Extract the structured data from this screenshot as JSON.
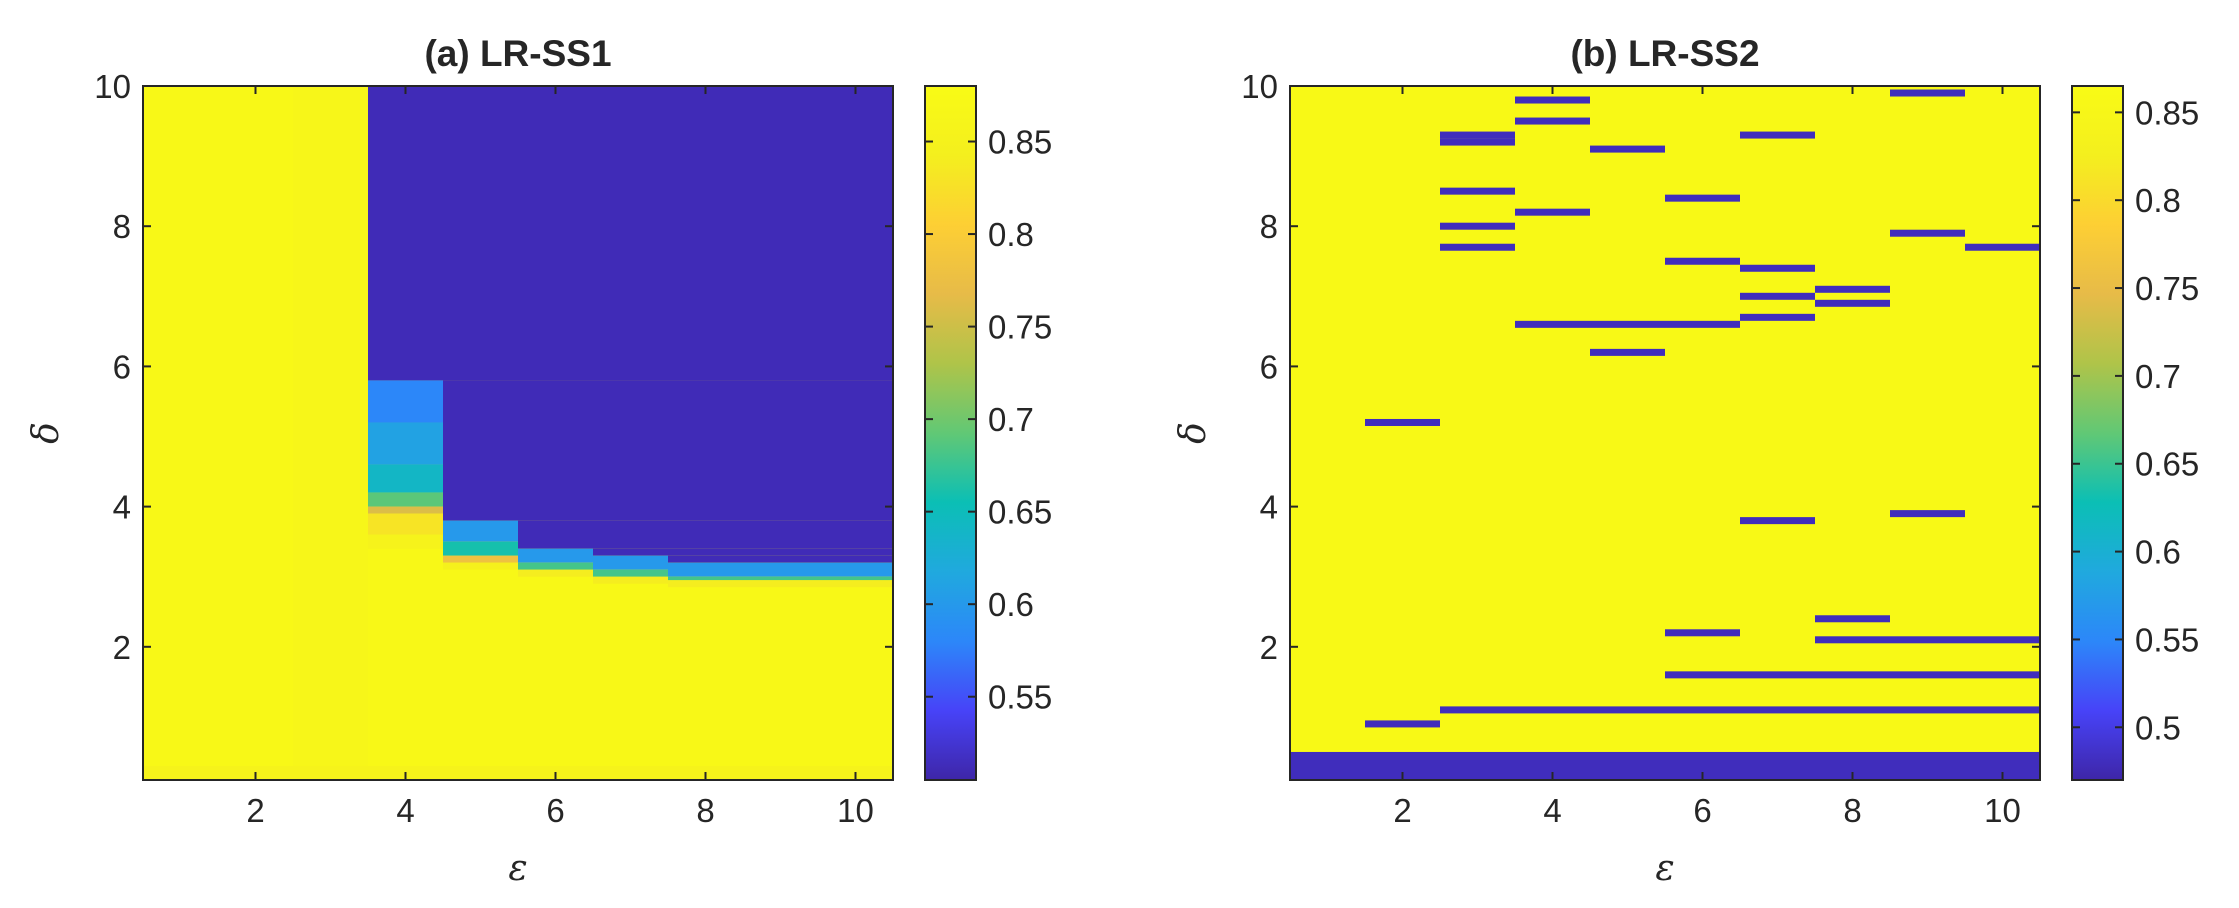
{
  "colormap": [
    "#3E26A8",
    "#4743F8",
    "#2C87F9",
    "#20A9DE",
    "#0BBFB5",
    "#61C875",
    "#AFC449",
    "#E7BB48",
    "#FDCF34",
    "#F4EF1E",
    "#F9FB15"
  ],
  "chart_data": [
    {
      "type": "heatmap",
      "title": "(a) LR-SS1",
      "xlabel": "ε",
      "ylabel": "δ",
      "xlim": [
        0.5,
        10.5
      ],
      "ylim": [
        0.1,
        10
      ],
      "xticks": [
        "2",
        "4",
        "6",
        "8",
        "10"
      ],
      "yticks": [
        "2",
        "4",
        "6",
        "8",
        "10"
      ],
      "clim": [
        0.505,
        0.88
      ],
      "cticks": [
        "0.55",
        "0.6",
        "0.65",
        "0.7",
        "0.75",
        "0.8",
        "0.85"
      ],
      "grid": false,
      "epsilon_columns": [
        1,
        2,
        3,
        4,
        5,
        6,
        7,
        8,
        9,
        10
      ],
      "regions": [
        {
          "x": [
            0.5,
            10.5
          ],
          "y": [
            0.1,
            10
          ],
          "value": 0.87
        },
        {
          "x": [
            2.5,
            3.5
          ],
          "y": [
            0.3,
            10
          ],
          "value": 0.865
        },
        {
          "x": [
            0.5,
            10.5
          ],
          "y": [
            0.1,
            0.3
          ],
          "value": 0.855
        },
        {
          "x": [
            3.5,
            10.5
          ],
          "y": [
            5.8,
            10
          ],
          "value": 0.512
        },
        {
          "x": [
            4.5,
            10.5
          ],
          "y": [
            3.8,
            5.8
          ],
          "value": 0.512
        },
        {
          "x": [
            5.5,
            10.5
          ],
          "y": [
            3.4,
            3.8
          ],
          "value": 0.512
        },
        {
          "x": [
            6.5,
            10.5
          ],
          "y": [
            3.3,
            3.4
          ],
          "value": 0.512
        },
        {
          "x": [
            7.5,
            10.5
          ],
          "y": [
            3.2,
            3.3
          ],
          "value": 0.512
        },
        {
          "x": [
            3.5,
            4.5
          ],
          "y": [
            5.2,
            5.8
          ],
          "value": 0.58
        },
        {
          "x": [
            3.5,
            4.5
          ],
          "y": [
            4.6,
            5.2
          ],
          "value": 0.61
        },
        {
          "x": [
            3.5,
            4.5
          ],
          "y": [
            4.2,
            4.6
          ],
          "value": 0.64
        },
        {
          "x": [
            3.5,
            4.5
          ],
          "y": [
            4.0,
            4.2
          ],
          "value": 0.69
        },
        {
          "x": [
            3.5,
            4.5
          ],
          "y": [
            3.9,
            4.0
          ],
          "value": 0.76
        },
        {
          "x": [
            3.5,
            4.5
          ],
          "y": [
            3.6,
            3.9
          ],
          "value": 0.83
        },
        {
          "x": [
            3.5,
            4.5
          ],
          "y": [
            3.4,
            3.6
          ],
          "value": 0.855
        },
        {
          "x": [
            4.5,
            5.5
          ],
          "y": [
            3.5,
            3.8
          ],
          "value": 0.6
        },
        {
          "x": [
            4.5,
            5.5
          ],
          "y": [
            3.3,
            3.5
          ],
          "value": 0.66
        },
        {
          "x": [
            4.5,
            5.5
          ],
          "y": [
            3.2,
            3.3
          ],
          "value": 0.78
        },
        {
          "x": [
            4.5,
            5.5
          ],
          "y": [
            3.1,
            3.2
          ],
          "value": 0.85
        },
        {
          "x": [
            5.5,
            6.5
          ],
          "y": [
            3.2,
            3.4
          ],
          "value": 0.6
        },
        {
          "x": [
            5.5,
            6.5
          ],
          "y": [
            3.1,
            3.2
          ],
          "value": 0.68
        },
        {
          "x": [
            5.5,
            6.5
          ],
          "y": [
            3.0,
            3.1
          ],
          "value": 0.84
        },
        {
          "x": [
            6.5,
            7.5
          ],
          "y": [
            3.1,
            3.3
          ],
          "value": 0.6
        },
        {
          "x": [
            6.5,
            7.5
          ],
          "y": [
            3.0,
            3.1
          ],
          "value": 0.68
        },
        {
          "x": [
            6.5,
            7.5
          ],
          "y": [
            2.9,
            3.0
          ],
          "value": 0.84
        },
        {
          "x": [
            7.5,
            10.5
          ],
          "y": [
            3.0,
            3.2
          ],
          "value": 0.6
        },
        {
          "x": [
            7.5,
            10.5
          ],
          "y": [
            2.95,
            3.0
          ],
          "value": 0.68
        },
        {
          "x": [
            7.5,
            10.5
          ],
          "y": [
            2.85,
            2.95
          ],
          "value": 0.84
        }
      ]
    },
    {
      "type": "heatmap",
      "title": "(b) LR-SS2",
      "xlabel": "ε",
      "ylabel": "δ",
      "xlim": [
        0.5,
        10.5
      ],
      "ylim": [
        0.1,
        10
      ],
      "xticks": [
        "2",
        "4",
        "6",
        "8",
        "10"
      ],
      "yticks": [
        "2",
        "4",
        "6",
        "8",
        "10"
      ],
      "clim": [
        0.47,
        0.865
      ],
      "cticks": [
        "0.5",
        "0.55",
        "0.6",
        "0.65",
        "0.7",
        "0.75",
        "0.8",
        "0.85"
      ],
      "grid": false,
      "background_value": 0.86,
      "low_value": 0.48,
      "bottom_row": {
        "x": [
          0.5,
          10.5
        ],
        "y": [
          0.1,
          0.5
        ],
        "value": 0.48
      },
      "low_segments": [
        {
          "x": [
            1.5,
            2.5
          ],
          "y": 5.2
        },
        {
          "x": [
            1.5,
            2.5
          ],
          "y": 0.9
        },
        {
          "x": [
            2.5,
            3.5
          ],
          "y": 9.3
        },
        {
          "x": [
            2.5,
            3.5
          ],
          "y": 9.2
        },
        {
          "x": [
            2.5,
            3.5
          ],
          "y": 8.5
        },
        {
          "x": [
            2.5,
            3.5
          ],
          "y": 8.0
        },
        {
          "x": [
            2.5,
            3.5
          ],
          "y": 7.7
        },
        {
          "x": [
            2.5,
            10.5
          ],
          "y": 1.1
        },
        {
          "x": [
            3.5,
            4.5
          ],
          "y": 9.8
        },
        {
          "x": [
            3.5,
            4.5
          ],
          "y": 9.5
        },
        {
          "x": [
            3.5,
            4.5
          ],
          "y": 8.2
        },
        {
          "x": [
            3.5,
            6.5
          ],
          "y": 6.6
        },
        {
          "x": [
            4.5,
            5.5
          ],
          "y": 9.1
        },
        {
          "x": [
            4.5,
            5.5
          ],
          "y": 6.2
        },
        {
          "x": [
            5.5,
            6.5
          ],
          "y": 8.4
        },
        {
          "x": [
            5.5,
            6.5
          ],
          "y": 7.5
        },
        {
          "x": [
            5.5,
            6.5
          ],
          "y": 2.2
        },
        {
          "x": [
            5.5,
            10.5
          ],
          "y": 1.6
        },
        {
          "x": [
            6.5,
            7.5
          ],
          "y": 9.3
        },
        {
          "x": [
            6.5,
            7.5
          ],
          "y": 7.4
        },
        {
          "x": [
            6.5,
            7.5
          ],
          "y": 7.0
        },
        {
          "x": [
            6.5,
            7.5
          ],
          "y": 6.7
        },
        {
          "x": [
            6.5,
            7.5
          ],
          "y": 3.8
        },
        {
          "x": [
            7.5,
            8.5
          ],
          "y": 7.1
        },
        {
          "x": [
            7.5,
            8.5
          ],
          "y": 6.9
        },
        {
          "x": [
            7.5,
            8.5
          ],
          "y": 2.4
        },
        {
          "x": [
            7.5,
            10.5
          ],
          "y": 2.1
        },
        {
          "x": [
            8.5,
            9.5
          ],
          "y": 9.9
        },
        {
          "x": [
            8.5,
            9.5
          ],
          "y": 7.9
        },
        {
          "x": [
            8.5,
            9.5
          ],
          "y": 3.9
        },
        {
          "x": [
            9.5,
            10.5
          ],
          "y": 7.7
        }
      ]
    }
  ]
}
